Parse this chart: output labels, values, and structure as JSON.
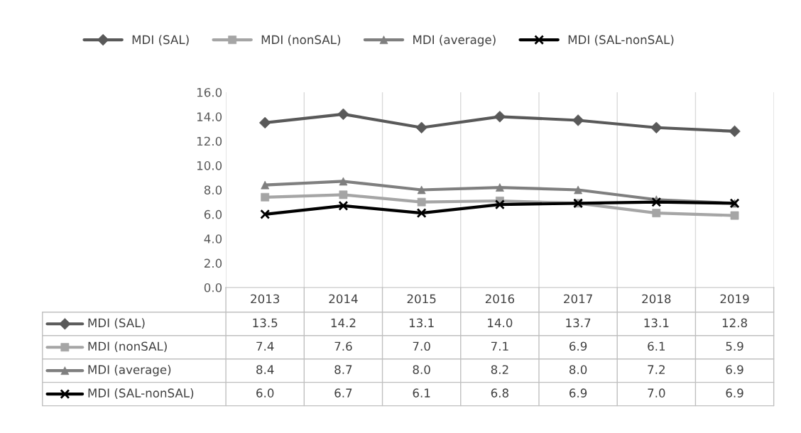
{
  "chart_data": {
    "type": "line",
    "categories": [
      "2013",
      "2014",
      "2015",
      "2016",
      "2017",
      "2018",
      "2019"
    ],
    "series": [
      {
        "name": "MDI (SAL)",
        "color": "#595959",
        "marker": "diamond",
        "values": [
          13.5,
          14.2,
          13.1,
          14.0,
          13.7,
          13.1,
          12.8
        ],
        "value_labels": [
          "13.5",
          "14.2",
          "13.1",
          "14.0",
          "13.7",
          "13.1",
          "12.8"
        ]
      },
      {
        "name": "MDI (nonSAL)",
        "color": "#a5a5a5",
        "marker": "square",
        "values": [
          7.4,
          7.6,
          7.0,
          7.1,
          6.9,
          6.1,
          5.9
        ],
        "value_labels": [
          "7.4",
          "7.6",
          "7.0",
          "7.1",
          "6.9",
          "6.1",
          "5.9"
        ]
      },
      {
        "name": "MDI (average)",
        "color": "#7f7f7f",
        "marker": "triangle",
        "values": [
          8.4,
          8.7,
          8.0,
          8.2,
          8.0,
          7.2,
          6.9
        ],
        "value_labels": [
          "8.4",
          "8.7",
          "8.0",
          "8.2",
          "8.0",
          "7.2",
          "6.9"
        ]
      },
      {
        "name": "MDI (SAL-nonSAL)",
        "color": "#000000",
        "marker": "cross",
        "values": [
          6.0,
          6.7,
          6.1,
          6.8,
          6.9,
          7.0,
          6.9
        ],
        "value_labels": [
          "6.0",
          "6.7",
          "6.1",
          "6.8",
          "6.9",
          "7.0",
          "6.9"
        ]
      }
    ],
    "ylim": [
      0,
      16
    ],
    "yticks": [
      {
        "value": 0,
        "label": "0.0"
      },
      {
        "value": 2,
        "label": "2.0"
      },
      {
        "value": 4,
        "label": "4.0"
      },
      {
        "value": 6,
        "label": "6.0"
      },
      {
        "value": 8,
        "label": "8.0"
      },
      {
        "value": 10,
        "label": "10.0"
      },
      {
        "value": 12,
        "label": "12.0"
      },
      {
        "value": 14,
        "label": "14.0"
      },
      {
        "value": 16,
        "label": "16.0"
      }
    ],
    "grid": "x",
    "legend": "top",
    "line_style": "solid"
  }
}
